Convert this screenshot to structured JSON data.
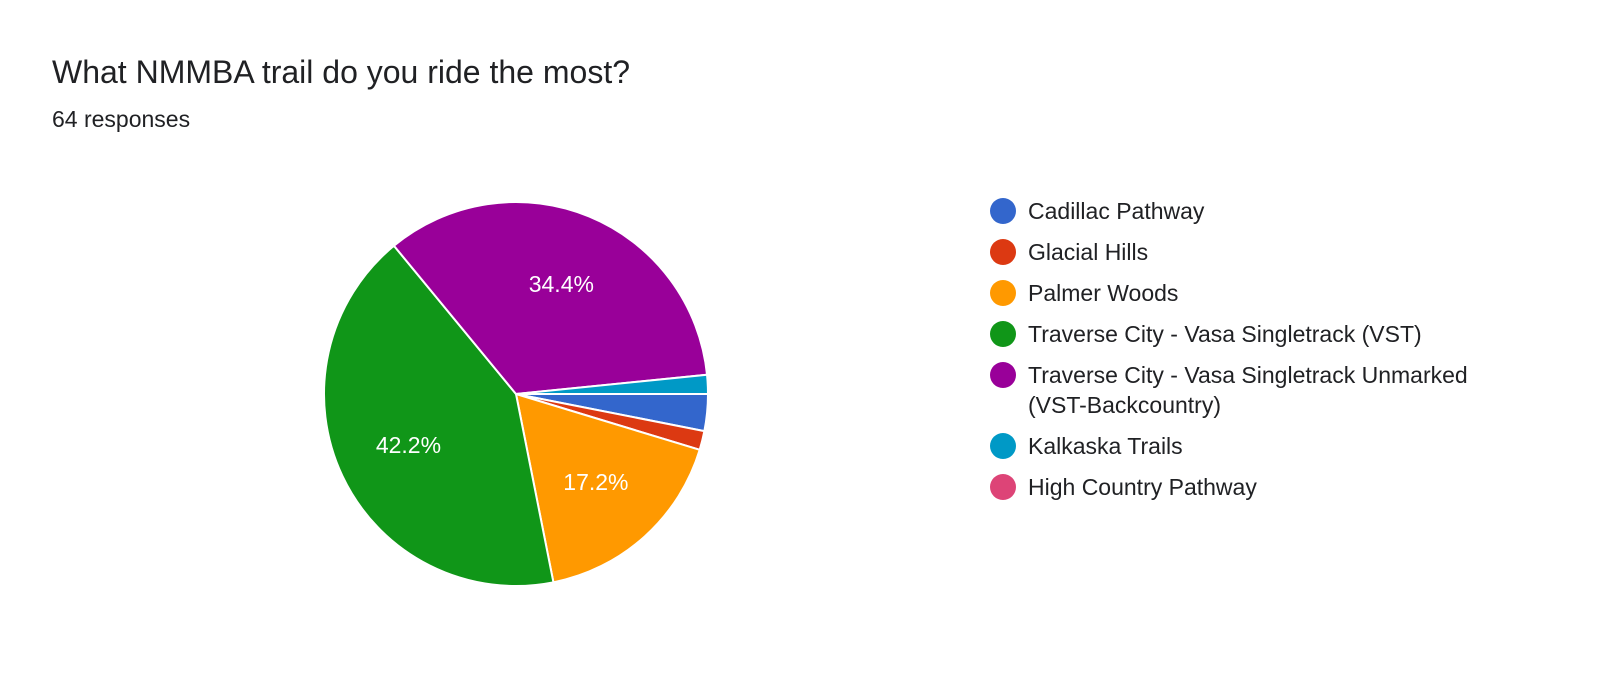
{
  "question": "What NMMBA trail do you ride the most?",
  "responses_label": "64 responses",
  "chart_data": {
    "type": "pie",
    "title": "What NMMBA trail do you ride the most?",
    "subtitle": "64 responses",
    "legend_position": "right",
    "slices": [
      {
        "label": "Cadillac Pathway",
        "value": 3.1,
        "color": "#3366cc",
        "data_label": ""
      },
      {
        "label": "Glacial Hills",
        "value": 1.6,
        "color": "#dc3912",
        "data_label": ""
      },
      {
        "label": "Palmer Woods",
        "value": 17.2,
        "color": "#ff9900",
        "data_label": "17.2%"
      },
      {
        "label": "Traverse City - Vasa Singletrack (VST)",
        "value": 42.2,
        "color": "#109618",
        "data_label": "42.2%"
      },
      {
        "label": "Traverse City - Vasa Singletrack Unmarked (VST-Backcountry)",
        "value": 34.4,
        "color": "#990099",
        "data_label": "34.4%"
      },
      {
        "label": "Kalkaska Trails",
        "value": 1.6,
        "color": "#0099c6",
        "data_label": ""
      },
      {
        "label": "High Country Pathway",
        "value": 0,
        "color": "#dd4477",
        "data_label": ""
      }
    ]
  }
}
